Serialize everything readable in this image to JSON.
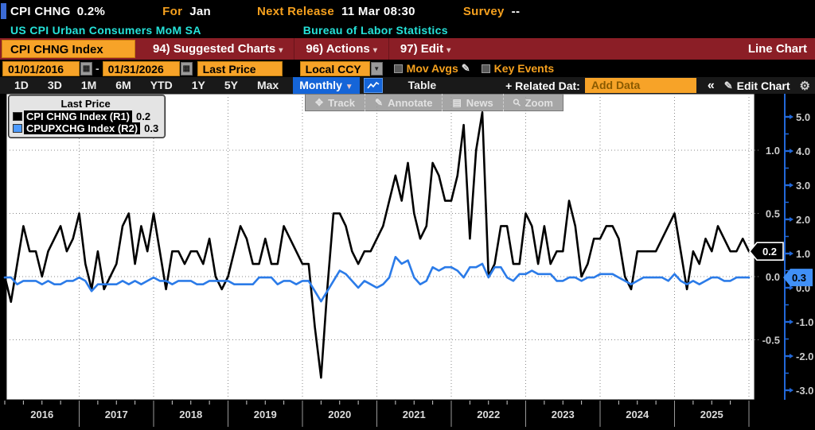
{
  "window": {
    "title_security": "CPI CHNG",
    "title_value": "0.2%",
    "for_label": "For",
    "for_value": "Jan",
    "next_release_label": "Next Release",
    "next_release_value": "11 Mar 08:30",
    "survey_label": "Survey",
    "survey_value": "--",
    "description": "US CPI Urban Consumers MoM SA",
    "source": "Bureau of Labor Statistics"
  },
  "menubar": {
    "security_input": "CPI CHNG Index",
    "items": [
      "94) Suggested Charts",
      "96) Actions",
      "97) Edit"
    ],
    "view_label": "Line Chart"
  },
  "controls": {
    "date_from": "01/01/2016",
    "date_sep": "-",
    "date_to": "01/31/2026",
    "price_type": "Last Price",
    "currency": "Local CCY",
    "mov_avgs_label": "Mov Avgs",
    "key_events_label": "Key Events"
  },
  "tabbar": {
    "ranges": [
      "1D",
      "3D",
      "1M",
      "6M",
      "YTD",
      "1Y",
      "5Y",
      "Max"
    ],
    "period": "Monthly",
    "table_label": "Table",
    "related_label": "+ Related Dat:",
    "add_data_placeholder": "Add Data",
    "collapse_label": "«",
    "edit_chart_label": "Edit Chart"
  },
  "chart_toolbar": [
    {
      "icon": "move-icon",
      "glyph": "✥",
      "label": "Track"
    },
    {
      "icon": "pencil-icon",
      "glyph": "✎",
      "label": "Annotate"
    },
    {
      "icon": "news-icon",
      "glyph": "▤",
      "label": "News"
    },
    {
      "icon": "magnifier-icon",
      "glyph": "⚲",
      "label": "Zoom"
    }
  ],
  "legend": {
    "title": "Last Price",
    "entries": [
      {
        "color": "#000000",
        "label": "CPI CHNG Index  (R1)",
        "value": "0.2"
      },
      {
        "color": "#4D9BFF",
        "label": "CPUPXCHG Index  (R2)",
        "value": "0.3"
      }
    ]
  },
  "chart_data": {
    "type": "line",
    "frequency": "monthly",
    "x_start": "2016-01",
    "x_end": "2026-01",
    "x_year_labels": [
      "2016",
      "2017",
      "2018",
      "2019",
      "2020",
      "2021",
      "2022",
      "2023",
      "2024",
      "2025"
    ],
    "grid": true,
    "right_axis_1": {
      "name": "R1",
      "ticks": [
        1.0,
        0.5,
        0.0,
        -0.5
      ],
      "last_value": "0.2",
      "tag_color": "#000000"
    },
    "right_axis_2": {
      "name": "R2",
      "ticks": [
        5.0,
        4.0,
        3.0,
        2.0,
        1.0,
        0.0,
        -1.0,
        -2.0,
        -3.0
      ],
      "last_value": "0.3",
      "tag_color": "#4090F7",
      "axis_color": "#2268D8"
    },
    "series": [
      {
        "name": "CPI CHNG Index",
        "axis": "R1",
        "color": "#000000",
        "values": [
          0.0,
          -0.2,
          0.1,
          0.4,
          0.2,
          0.2,
          0.0,
          0.2,
          0.3,
          0.4,
          0.2,
          0.3,
          0.5,
          0.1,
          -0.1,
          0.2,
          -0.1,
          0.0,
          0.1,
          0.4,
          0.5,
          0.1,
          0.4,
          0.2,
          0.5,
          0.2,
          -0.1,
          0.2,
          0.2,
          0.1,
          0.2,
          0.2,
          0.1,
          0.3,
          0.0,
          -0.1,
          0.0,
          0.2,
          0.4,
          0.3,
          0.1,
          0.1,
          0.3,
          0.1,
          0.1,
          0.4,
          0.3,
          0.2,
          0.1,
          0.1,
          -0.4,
          -0.8,
          -0.1,
          0.5,
          0.5,
          0.4,
          0.2,
          0.1,
          0.2,
          0.2,
          0.3,
          0.4,
          0.6,
          0.8,
          0.6,
          0.9,
          0.5,
          0.3,
          0.4,
          0.9,
          0.8,
          0.6,
          0.6,
          0.8,
          1.2,
          0.3,
          1.0,
          1.3,
          0.0,
          0.1,
          0.4,
          0.4,
          0.1,
          0.1,
          0.5,
          0.4,
          0.1,
          0.4,
          0.1,
          0.2,
          0.2,
          0.6,
          0.4,
          0.0,
          0.1,
          0.3,
          0.3,
          0.4,
          0.4,
          0.3,
          0.0,
          -0.1,
          0.2,
          0.2,
          0.2,
          0.2,
          0.3,
          0.4,
          0.5,
          0.2,
          -0.1,
          0.2,
          0.1,
          0.3,
          0.2,
          0.4,
          0.3,
          0.2,
          0.2,
          0.3,
          0.2
        ]
      },
      {
        "name": "CPUPXCHG Index",
        "axis": "R2",
        "color": "#2B7BE8",
        "values": [
          0.3,
          0.3,
          0.1,
          0.2,
          0.2,
          0.2,
          0.1,
          0.2,
          0.1,
          0.1,
          0.2,
          0.2,
          0.3,
          0.2,
          -0.1,
          0.1,
          0.1,
          0.1,
          0.1,
          0.2,
          0.1,
          0.2,
          0.1,
          0.2,
          0.3,
          0.2,
          0.2,
          0.1,
          0.2,
          0.2,
          0.2,
          0.1,
          0.1,
          0.2,
          0.2,
          0.2,
          0.2,
          0.1,
          0.1,
          0.1,
          0.1,
          0.3,
          0.3,
          0.3,
          0.1,
          0.2,
          0.2,
          0.1,
          0.2,
          0.2,
          -0.1,
          -0.4,
          -0.1,
          0.2,
          0.5,
          0.4,
          0.2,
          0.0,
          0.2,
          0.1,
          0.0,
          0.1,
          0.3,
          0.9,
          0.7,
          0.8,
          0.3,
          0.1,
          0.2,
          0.6,
          0.5,
          0.6,
          0.6,
          0.5,
          0.3,
          0.6,
          0.6,
          0.7,
          0.3,
          0.6,
          0.6,
          0.3,
          0.2,
          0.4,
          0.4,
          0.5,
          0.4,
          0.4,
          0.4,
          0.2,
          0.2,
          0.3,
          0.3,
          0.2,
          0.3,
          0.3,
          0.4,
          0.4,
          0.4,
          0.3,
          0.2,
          0.1,
          0.2,
          0.3,
          0.3,
          0.3,
          0.3,
          0.2,
          0.4,
          0.2,
          0.1,
          0.2,
          0.1,
          0.2,
          0.3,
          0.3,
          0.2,
          0.2,
          0.3,
          0.3,
          0.3
        ]
      }
    ]
  }
}
